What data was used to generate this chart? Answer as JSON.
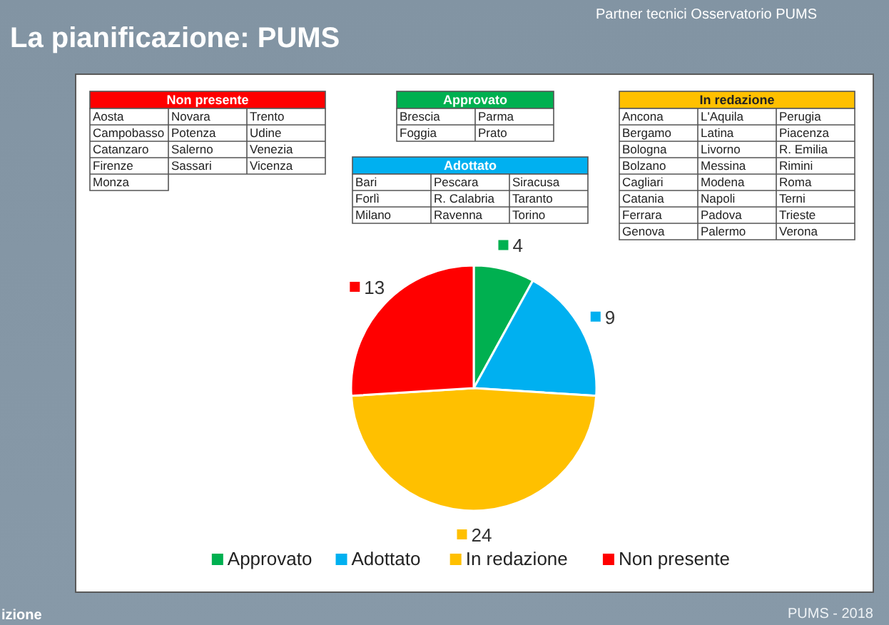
{
  "chart_data": [
    {
      "type": "pie",
      "title": "La pianificazione: PUMS",
      "categories": [
        "Approvato",
        "Adottato",
        "In redazione",
        "Non presente"
      ],
      "values": [
        4,
        9,
        24,
        13
      ],
      "colors": [
        "#00b050",
        "#00b0f0",
        "#ffc000",
        "#ff0000"
      ],
      "data_labels": true,
      "legend": "bottom",
      "annotations": [
        "Partner tecnici Osservatorio PUMS",
        "PUMS - 2018",
        "izione"
      ]
    },
    {
      "type": "other",
      "title": "Non presente",
      "color": "#ff0000",
      "annotations": [
        "Aosta",
        "Novara",
        "Trento",
        "Campobasso",
        "Potenza",
        "Udine",
        "Catanzaro",
        "Salerno",
        "Venezia",
        "Firenze",
        "Sassari",
        "Vicenza",
        "Monza"
      ]
    },
    {
      "type": "other",
      "title": "Approvato",
      "color": "#00b050",
      "annotations": [
        "Brescia",
        "Parma",
        "Foggia",
        "Prato"
      ]
    },
    {
      "type": "other",
      "title": "In redazione",
      "color": "#ffc000",
      "annotations": [
        "Ancona",
        "L'Aquila",
        "Perugia",
        "Bergamo",
        "Latina",
        "Piacenza",
        "Bologna",
        "Livorno",
        "R. Emilia",
        "Bolzano",
        "Messina",
        "Rimini",
        "Cagliari",
        "Modena",
        "Roma",
        "Catania",
        "Napoli",
        "Terni",
        "Ferrara",
        "Padova",
        "Trieste",
        "Genova",
        "Palermo",
        "Verona"
      ]
    },
    {
      "type": "other",
      "title": "Adottato",
      "color": "#00b0f0",
      "annotations": [
        "Bari",
        "Pescara",
        "Siracusa",
        "Forlì",
        "R. Calabria",
        "Taranto",
        "Milano",
        "Ravenna",
        "Torino"
      ]
    }
  ]
}
